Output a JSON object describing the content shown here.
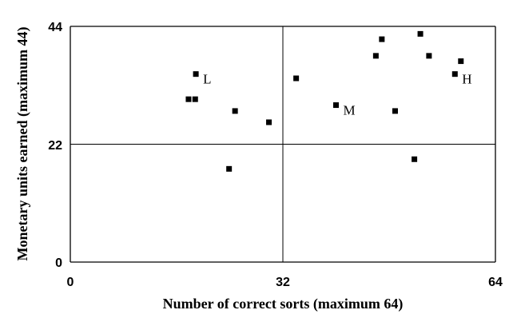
{
  "chart_data": {
    "type": "scatter",
    "xlabel": "Number of correct sorts (maximum 64)",
    "ylabel": "Monetary units earned (maximum 44)",
    "xlim": [
      0,
      64
    ],
    "ylim": [
      0,
      44
    ],
    "x_ticks": [
      "0",
      "32",
      "64"
    ],
    "y_ticks": [
      "0",
      "22",
      "44"
    ],
    "reference_lines": {
      "x": 32,
      "y": 22
    },
    "grid": false,
    "points": [
      {
        "x": 17.8,
        "y": 30.4
      },
      {
        "x": 18.8,
        "y": 30.4
      },
      {
        "x": 18.9,
        "y": 35.1
      },
      {
        "x": 23.9,
        "y": 17.4
      },
      {
        "x": 24.8,
        "y": 28.2
      },
      {
        "x": 29.9,
        "y": 26.1
      },
      {
        "x": 34.0,
        "y": 34.3
      },
      {
        "x": 40.0,
        "y": 29.3
      },
      {
        "x": 46.0,
        "y": 38.5
      },
      {
        "x": 46.9,
        "y": 41.6
      },
      {
        "x": 48.9,
        "y": 28.2
      },
      {
        "x": 51.8,
        "y": 19.2
      },
      {
        "x": 52.7,
        "y": 42.6
      },
      {
        "x": 54.0,
        "y": 38.5
      },
      {
        "x": 57.9,
        "y": 35.1
      },
      {
        "x": 58.8,
        "y": 37.5
      }
    ],
    "annotations": [
      {
        "text": "L",
        "x": 18.9,
        "y": 35.1
      },
      {
        "text": "M",
        "x": 40.0,
        "y": 29.3
      },
      {
        "text": "H",
        "x": 57.9,
        "y": 35.1
      }
    ]
  }
}
